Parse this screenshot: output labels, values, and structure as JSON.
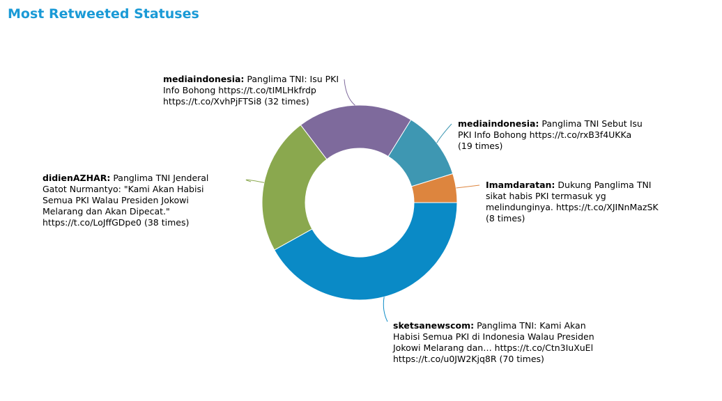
{
  "title": "Most Retweeted Statuses",
  "accent_color": "#1a9ad6",
  "chart_data": {
    "type": "pie",
    "donut": true,
    "title": "Most Retweeted Statuses",
    "unit_suffix": "times",
    "slices": [
      {
        "user": "sketsanewscom",
        "text": "Panglima TNI: Kami Akan Habisi Semua PKI di Indonesia Walau Presiden Jokowi Melarang dan… https://t.co/Ctn3IuXuEl https://t.co/u0JW2Kjq8R",
        "value": 70,
        "color": "#0a8ac6"
      },
      {
        "user": "didienAZHAR",
        "text": "Panglima TNI Jenderal Gatot Nurmantyo: \"Kami Akan Habisi Semua PKI Walau Presiden Jokowi Melarang dan Akan Dipecat.\" https://t.co/LoJffGDpe0",
        "value": 38,
        "color": "#8aa84e"
      },
      {
        "user": "mediaindonesia",
        "text": "Panglima TNI: Isu PKI Info Bohong https://t.co/tIMLHkfrdp https://t.co/XvhPjFTSi8",
        "value": 32,
        "color": "#7e6a9c"
      },
      {
        "user": "mediaindonesia",
        "text": "Panglima TNI Sebut Isu PKI Info Bohong https://t.co/rxB3f4UKKa",
        "value": 19,
        "color": "#3e97b2"
      },
      {
        "user": "Imamdaratan",
        "text": "Dukung Panglima TNI sikat habis PKI termasuk yg melindunginya. https://t.co/XJINnMazSK",
        "value": 8,
        "color": "#dd853e"
      }
    ]
  }
}
